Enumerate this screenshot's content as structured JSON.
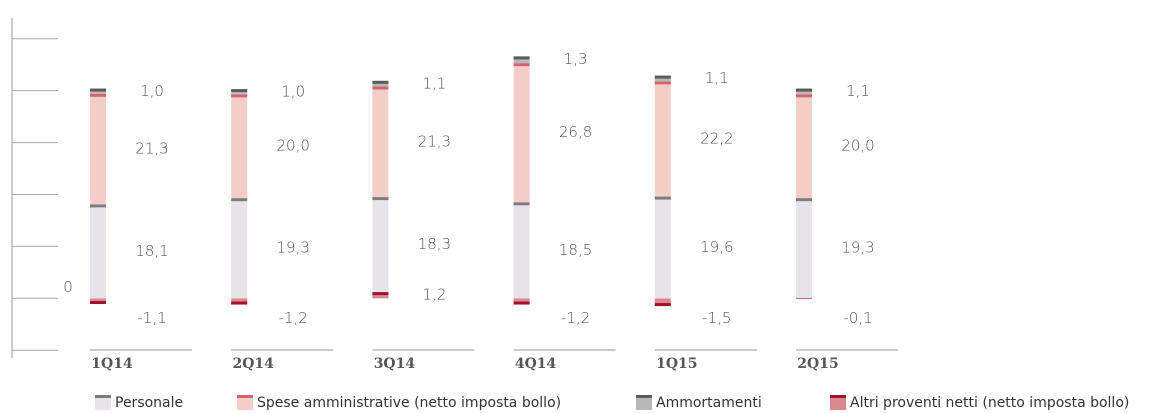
{
  "chart_data": {
    "type": "stacked_bar",
    "categories": [
      "1Q14",
      "2Q14",
      "3Q14",
      "4Q14",
      "1Q15",
      "2Q15"
    ],
    "series": [
      {
        "name": "Personale",
        "color": "#e6e4e9",
        "cap_color": "#7b7b7b",
        "values": [
          18.1,
          19.3,
          18.3,
          18.5,
          19.6,
          19.3
        ],
        "value_labels": [
          "18,1",
          "19,3",
          "18,3",
          "18,5",
          "19,6",
          "19,3"
        ]
      },
      {
        "name": "Spese amministrative (netto imposta bollo)",
        "color": "#f3cdc8",
        "cap_color": "#d6636c",
        "values": [
          21.3,
          20.0,
          21.3,
          26.8,
          22.2,
          20.0
        ],
        "value_labels": [
          "21,3",
          "20,0",
          "21,3",
          "26,8",
          "22,2",
          "20,0"
        ]
      },
      {
        "name": "Ammortamenti",
        "color": "#b9b9b9",
        "cap_color": "#5b5b5b",
        "values": [
          1.0,
          1.0,
          1.1,
          1.3,
          1.1,
          1.1
        ],
        "value_labels": [
          "1,0",
          "1,0",
          "1,1",
          "1,3",
          "1,1",
          "1,1"
        ]
      },
      {
        "name": "Altri proventi netti (netto imposta bollo)",
        "color": "#d9888d",
        "cap_color": "#a3102c",
        "values": [
          -1.1,
          -1.2,
          1.2,
          -1.2,
          -1.5,
          -0.1
        ],
        "value_labels": [
          "-1,1",
          "-1,2",
          "1,2",
          "-1,2",
          "-1,5",
          "-0,1"
        ]
      }
    ],
    "ylim": [
      -11.5,
      54
    ],
    "yticks": [
      -10,
      0,
      10,
      20,
      30,
      40,
      50
    ],
    "ytick_labels": [
      0
    ]
  }
}
